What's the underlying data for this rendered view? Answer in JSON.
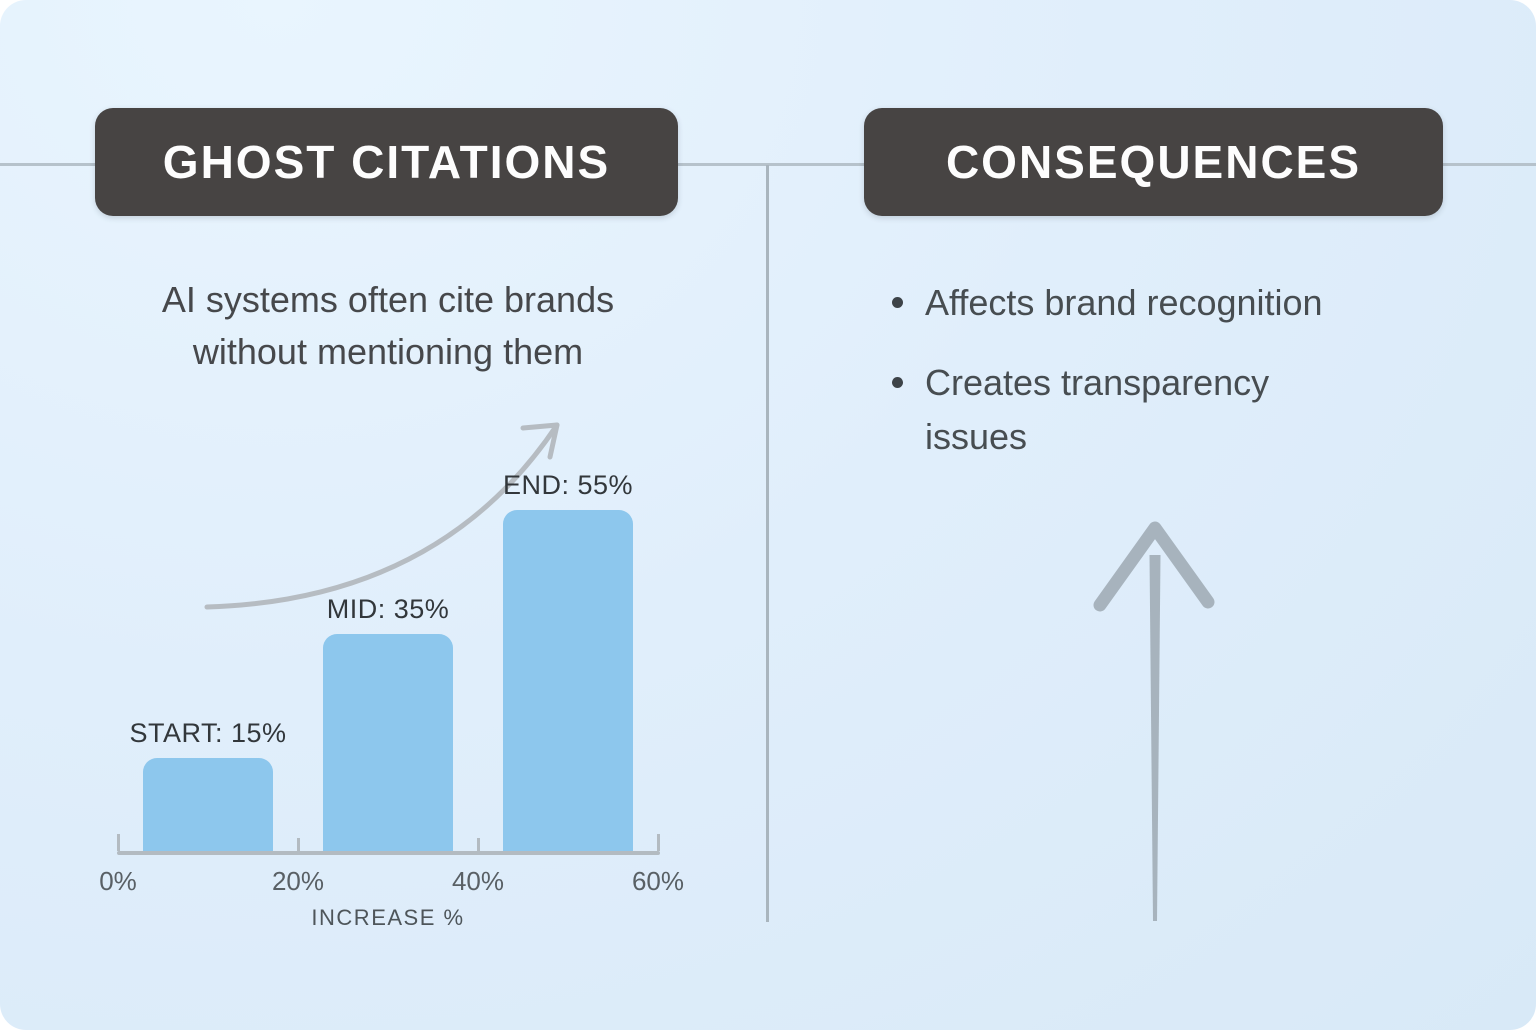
{
  "left_panel": {
    "header": "GHOST CITATIONS",
    "subtitle_lines": [
      "AI systems often cite brands",
      "without mentioning them"
    ]
  },
  "right_panel": {
    "header": "CONSEQUENCES",
    "bullets": [
      "Affects brand recognition",
      "Creates transparency issues"
    ]
  },
  "chart_data": {
    "type": "bar",
    "categories": [
      "START",
      "MID",
      "END"
    ],
    "values": [
      15,
      35,
      55
    ],
    "bar_labels": [
      "START: 15%",
      "MID: 35%",
      "END: 55%"
    ],
    "x_tick_labels": [
      "0%",
      "20%",
      "40%",
      "60%"
    ],
    "x_tick_values": [
      0,
      20,
      40,
      60
    ],
    "xlabel": "INCREASE %",
    "xlim": [
      0,
      60
    ],
    "ylim": [
      0,
      55
    ],
    "grid": false,
    "legend": false,
    "annotations": [
      "growth-curve-arrow"
    ]
  },
  "icons": {
    "curve_arrow": "growth-curve-arrow",
    "up_arrow": "up-arrow"
  },
  "colors": {
    "background": "#e0eefb",
    "header_bg": "#474443",
    "header_text": "#fdfdfd",
    "bar_fill": "#8dc7ed",
    "body_text": "#46484b",
    "axis_gray": "#b3bbc1",
    "arrow_gray": "#a9b4be",
    "divider_gray": "#aeb9c2"
  }
}
